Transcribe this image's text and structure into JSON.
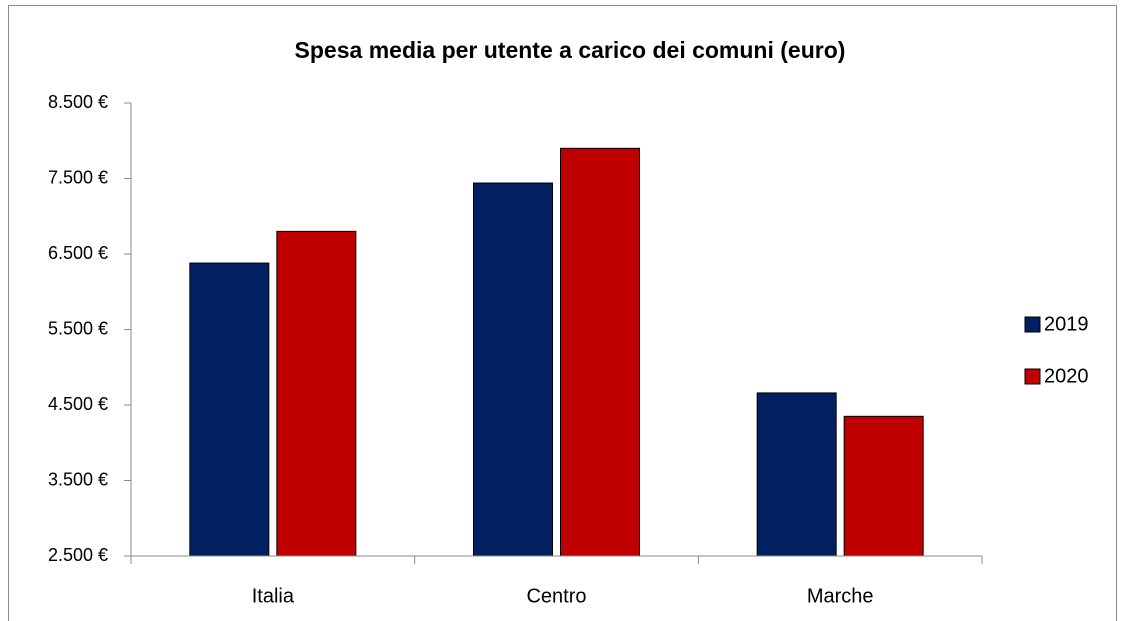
{
  "chart_data": {
    "type": "bar",
    "title": "Spesa media per utente a carico dei comuni (euro)",
    "categories": [
      "Italia",
      "Centro",
      "Marche"
    ],
    "series": [
      {
        "name": "2019",
        "color": "#002060",
        "values": [
          6380,
          7440,
          4660
        ]
      },
      {
        "name": "2020",
        "color": "#c00000",
        "values": [
          6800,
          7900,
          4350
        ]
      }
    ],
    "ylim": [
      2500,
      8500
    ],
    "yticks": [
      {
        "value": 2500,
        "label": "2.500 €"
      },
      {
        "value": 3500,
        "label": "3.500 €"
      },
      {
        "value": 4500,
        "label": "4.500 €"
      },
      {
        "value": 5500,
        "label": "5.500 €"
      },
      {
        "value": 6500,
        "label": "6.500 €"
      },
      {
        "value": 7500,
        "label": "7.500 €"
      },
      {
        "value": 8500,
        "label": "8.500 €"
      }
    ],
    "grid": false,
    "legend": "right"
  }
}
